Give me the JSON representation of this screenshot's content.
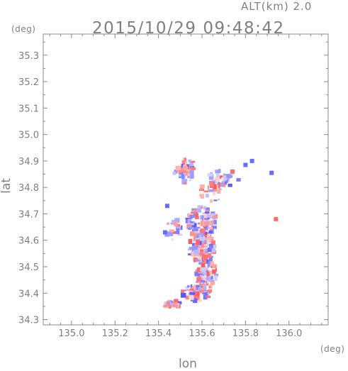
{
  "header": {
    "altitude_label": "ALT(km) 2.0",
    "timestamp": "2015/10/29 09:48:42",
    "y_unit": "(deg)",
    "x_unit": "(deg)"
  },
  "chart_data": {
    "type": "heatmap",
    "title": "2015/10/29 09:48:42",
    "xlabel": "lon",
    "ylabel": "lat",
    "x_unit": "(deg)",
    "y_unit": "(deg)",
    "xlim": [
      134.87,
      136.18
    ],
    "ylim": [
      34.28,
      35.38
    ],
    "xticks": [
      135.0,
      135.2,
      135.4,
      135.6,
      135.8,
      136.0
    ],
    "xtick_labels": [
      "135.0",
      "135.2",
      "135.4",
      "135.6",
      "135.8",
      "136.0"
    ],
    "yticks": [
      34.3,
      34.4,
      34.5,
      34.6,
      34.7,
      34.8,
      34.9,
      35.0,
      35.1,
      35.2,
      35.3
    ],
    "ytick_labels": [
      "34.3",
      "34.4",
      "34.5",
      "34.6",
      "34.7",
      "34.8",
      "34.9",
      "35.0",
      "35.1",
      "35.2",
      "35.3"
    ],
    "grid": false,
    "colors": {
      "positive": "#ff5a5a",
      "negative": "#5a5aff",
      "axis": "#8a8a8a"
    },
    "regions": [
      {
        "lon": 135.52,
        "lat": 34.865,
        "rx": 0.05,
        "ry": 0.05,
        "n": 55
      },
      {
        "lon": 135.7,
        "lat": 34.835,
        "rx": 0.07,
        "ry": 0.035,
        "n": 40
      },
      {
        "lon": 135.64,
        "lat": 34.78,
        "rx": 0.05,
        "ry": 0.04,
        "n": 25
      },
      {
        "lon": 135.6,
        "lat": 34.67,
        "rx": 0.07,
        "ry": 0.06,
        "n": 90
      },
      {
        "lon": 135.6,
        "lat": 34.57,
        "rx": 0.06,
        "ry": 0.06,
        "n": 110
      },
      {
        "lon": 135.62,
        "lat": 34.47,
        "rx": 0.05,
        "ry": 0.05,
        "n": 70
      },
      {
        "lon": 135.57,
        "lat": 34.4,
        "rx": 0.07,
        "ry": 0.03,
        "n": 55
      },
      {
        "lon": 135.46,
        "lat": 34.36,
        "rx": 0.05,
        "ry": 0.012,
        "n": 25
      },
      {
        "lon": 135.47,
        "lat": 34.64,
        "rx": 0.04,
        "ry": 0.04,
        "n": 18
      }
    ],
    "isolated": [
      {
        "lon": 135.92,
        "lat": 34.855,
        "sign": -1
      },
      {
        "lon": 135.94,
        "lat": 34.68,
        "sign": 1
      },
      {
        "lon": 135.83,
        "lat": 34.9,
        "sign": -1
      },
      {
        "lon": 135.8,
        "lat": 34.885,
        "sign": -1
      },
      {
        "lon": 135.43,
        "lat": 34.63,
        "sign": -1
      },
      {
        "lon": 135.44,
        "lat": 34.73,
        "sign": -1
      },
      {
        "lon": 135.74,
        "lat": 34.86,
        "sign": 1
      }
    ]
  }
}
